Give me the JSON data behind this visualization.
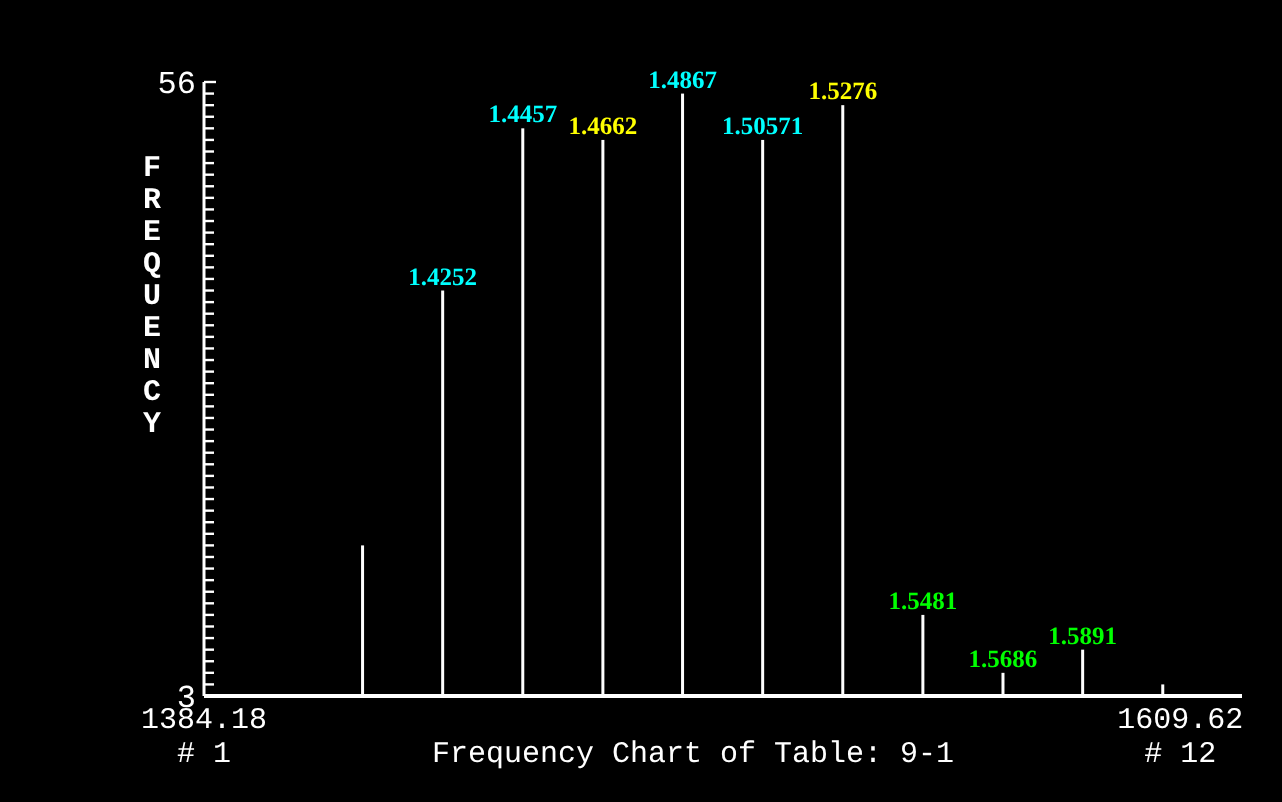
{
  "chart_data": {
    "type": "bar",
    "title": "Frequency Chart of Table: 9-1",
    "ylabel": "FREQUENCY",
    "x": [
      1420.8,
      1439.3,
      1457.8,
      1476.3,
      1494.7,
      1513.2,
      1531.7,
      1550.2,
      1568.7,
      1587.1,
      1605.6
    ],
    "values": [
      16,
      38,
      52,
      51,
      55,
      51,
      54,
      10,
      5,
      7,
      4
    ],
    "color": "#ffffff",
    "xlim": [
      1384.18,
      1623.9
    ],
    "xticks": [
      1384.18,
      1609.62
    ],
    "ylim": [
      3,
      56
    ],
    "yticks": [
      3,
      {
        "value": 4,
        "label": null
      },
      {
        "value": 5,
        "label": null
      },
      {
        "value": 6,
        "label": null
      },
      {
        "value": 7,
        "label": null
      },
      {
        "value": 8,
        "label": null
      },
      {
        "value": 9,
        "label": null
      },
      {
        "value": 10,
        "label": null
      },
      {
        "value": 11,
        "label": null
      },
      {
        "value": 12,
        "label": null
      },
      {
        "value": 13,
        "label": null
      },
      {
        "value": 14,
        "label": null
      },
      {
        "value": 15,
        "label": null
      },
      {
        "value": 16,
        "label": null
      },
      {
        "value": 17,
        "label": null
      },
      {
        "value": 18,
        "label": null
      },
      {
        "value": 19,
        "label": null
      },
      {
        "value": 20,
        "label": null
      },
      {
        "value": 21,
        "label": null
      },
      {
        "value": 22,
        "label": null
      },
      {
        "value": 23,
        "label": null
      },
      {
        "value": 24,
        "label": null
      },
      {
        "value": 25,
        "label": null
      },
      {
        "value": 26,
        "label": null
      },
      {
        "value": 27,
        "label": null
      },
      {
        "value": 28,
        "label": null
      },
      {
        "value": 29,
        "label": null
      },
      {
        "value": 30,
        "label": null
      },
      {
        "value": 31,
        "label": null
      },
      {
        "value": 32,
        "label": null
      },
      {
        "value": 33,
        "label": null
      },
      {
        "value": 34,
        "label": null
      },
      {
        "value": 35,
        "label": null
      },
      {
        "value": 36,
        "label": null
      },
      {
        "value": 37,
        "label": null
      },
      {
        "value": 38,
        "label": null
      },
      {
        "value": 39,
        "label": null
      },
      {
        "value": 40,
        "label": null
      },
      {
        "value": 41,
        "label": null
      },
      {
        "value": 42,
        "label": null
      },
      {
        "value": 43,
        "label": null
      },
      {
        "value": 44,
        "label": null
      },
      {
        "value": 45,
        "label": null
      },
      {
        "value": 46,
        "label": null
      },
      {
        "value": 47,
        "label": null
      },
      {
        "value": 48,
        "label": null
      },
      {
        "value": 49,
        "label": null
      },
      {
        "value": 50,
        "label": null
      },
      {
        "value": 51,
        "label": null
      },
      {
        "value": 52,
        "label": null
      },
      {
        "value": 53,
        "label": null
      },
      {
        "value": 54,
        "label": null
      },
      {
        "value": 55,
        "label": null
      },
      56
    ],
    "annotations": [
      "# 1",
      "# 12",
      {
        "text": "1.4252",
        "x": 1439.3,
        "y": 38
      },
      {
        "text": "1.4457",
        "x": 1457.8,
        "y": 52
      },
      {
        "text": "1.4662",
        "x": 1476.3,
        "y": 51
      },
      {
        "text": "1.4867",
        "x": 1494.7,
        "y": 55
      },
      {
        "text": "1.50571",
        "x": 1513.2,
        "y": 51
      },
      {
        "text": "1.5276",
        "x": 1531.7,
        "y": 54
      },
      {
        "text": "1.5481",
        "x": 1550.2,
        "y": 10
      },
      {
        "text": "1.5686",
        "x": 1568.7,
        "y": 5
      },
      {
        "text": "1.5891",
        "x": 1587.1,
        "y": 7
      }
    ],
    "grid": false
  }
}
